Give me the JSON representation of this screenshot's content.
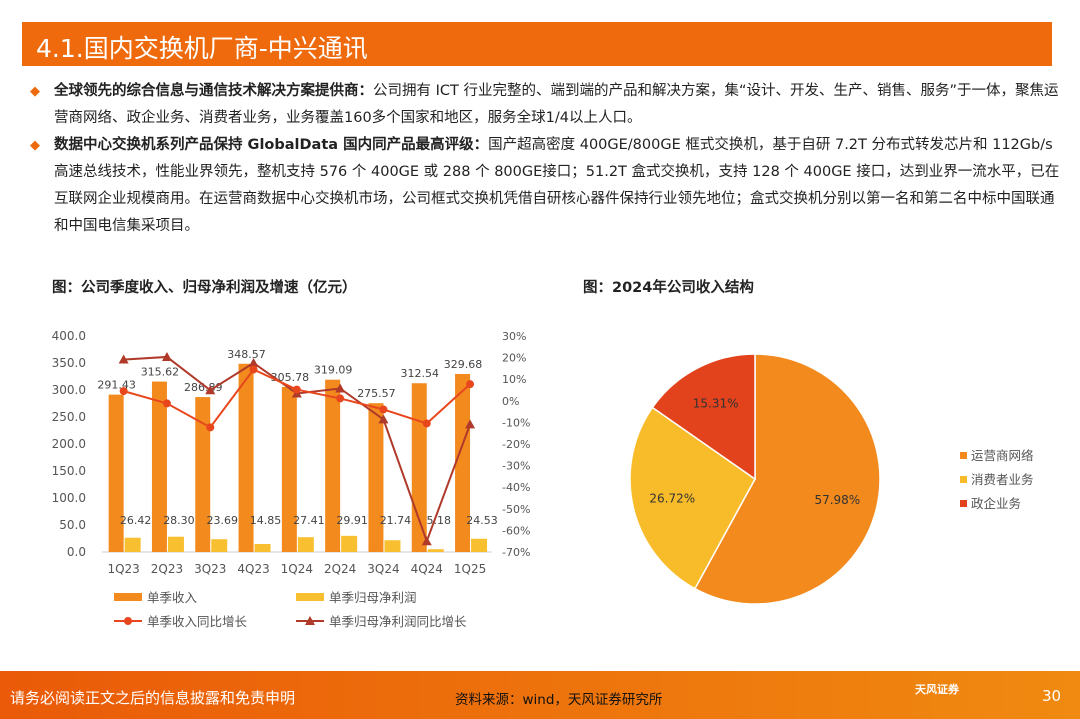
{
  "title": "4.1.国内交换机厂商-中兴通讯",
  "bullets": [
    {
      "bold": "全球领先的综合信息与通信技术解决方案提供商：",
      "text": "公司拥有 ICT 行业完整的、端到端的产品和解决方案，集“设计、开发、生产、销售、服务”于一体，聚焦运营商网络、政企业务、消费者业务，业务覆盖160多个国家和地区，服务全球1/4以上人口。"
    },
    {
      "bold": "数据中心交换机系列产品保持 GlobalData 国内同产品最高评级：",
      "text": "国产超高密度 400GE/800GE 框式交换机，基于自研 7.2T 分布式转发芯片和 112Gb/s 高速总线技术，性能业界领先，整机支持 576 个 400GE 或 288 个 800GE接口；51.2T 盒式交换机，支持 128 个 400GE 接口，达到业界一流水平，已在互联网企业规模商用。在运营商数据中心交换机市场，公司框式交换机凭借自研核心器件保持行业领先地位；盒式交换机分别以第一名和第二名中标中国联通和中国电信集采项目。"
    }
  ],
  "chart_data": [
    {
      "type": "bar",
      "title": "图：公司季度收入、归母净利润及增速（亿元）",
      "categories": [
        "1Q23",
        "2Q23",
        "3Q23",
        "4Q23",
        "1Q24",
        "2Q24",
        "3Q24",
        "4Q24",
        "1Q25"
      ],
      "ylim": [
        0,
        400
      ],
      "yticks": [
        "0.0",
        "50.0",
        "100.0",
        "150.0",
        "200.0",
        "250.0",
        "300.0",
        "350.0",
        "400.0"
      ],
      "y2lim": [
        -70,
        30
      ],
      "y2ticks": [
        "-70%",
        "-60%",
        "-50%",
        "-40%",
        "-30%",
        "-20%",
        "-10%",
        "0%",
        "10%",
        "20%",
        "30%"
      ],
      "series": [
        {
          "name": "单季收入",
          "kind": "bar",
          "color": "#F28A1E",
          "values": [
            291.43,
            315.62,
            286.89,
            348.57,
            305.78,
            319.09,
            275.57,
            312.54,
            329.68
          ],
          "labels": [
            "291.43",
            "315.62",
            "286.89",
            "348.57",
            "305.78",
            "319.09",
            "275.57",
            "312.54",
            "329.68"
          ]
        },
        {
          "name": "单季归母净利润",
          "kind": "bar",
          "color": "#F8C030",
          "values": [
            26.42,
            28.3,
            23.69,
            14.85,
            27.41,
            29.91,
            21.74,
            5.18,
            24.53
          ],
          "labels": [
            "26.42",
            "28.30",
            "23.69",
            "14.85",
            "27.41",
            "29.91",
            "21.74",
            "5.18",
            "24.53"
          ]
        },
        {
          "name": "单季收入同比增长",
          "kind": "line",
          "marker": "circle",
          "axis": "right",
          "color": "#E8471E",
          "values": [
            4.5,
            -1.2,
            -12.3,
            14.5,
            5.2,
            1.1,
            -4.0,
            -10.5,
            7.7
          ]
        },
        {
          "name": "单季归母净利润同比增长",
          "kind": "line",
          "marker": "triangle",
          "axis": "right",
          "color": "#B03A2A",
          "values": [
            19.1,
            20.3,
            4.9,
            17.5,
            3.4,
            5.7,
            -8.6,
            -65.0,
            -10.9
          ]
        }
      ],
      "legend": "bottom"
    },
    {
      "type": "pie",
      "title": "图：2024年公司收入结构",
      "slices": [
        {
          "name": "运营商网络",
          "value": 57.98,
          "label": "57.98%",
          "color": "#F28A1E"
        },
        {
          "name": "消费者业务",
          "value": 26.72,
          "label": "26.72%",
          "color": "#F8BC2A"
        },
        {
          "name": "政企业务",
          "value": 15.31,
          "label": "15.31%",
          "color": "#E2421C"
        }
      ],
      "legend": "right"
    }
  ],
  "footer": {
    "disclaimer": "请务必阅读正文之后的信息披露和免责申明",
    "source": "资料来源：wind，天风证券研究所",
    "logo": "天风证券",
    "page": "30"
  }
}
